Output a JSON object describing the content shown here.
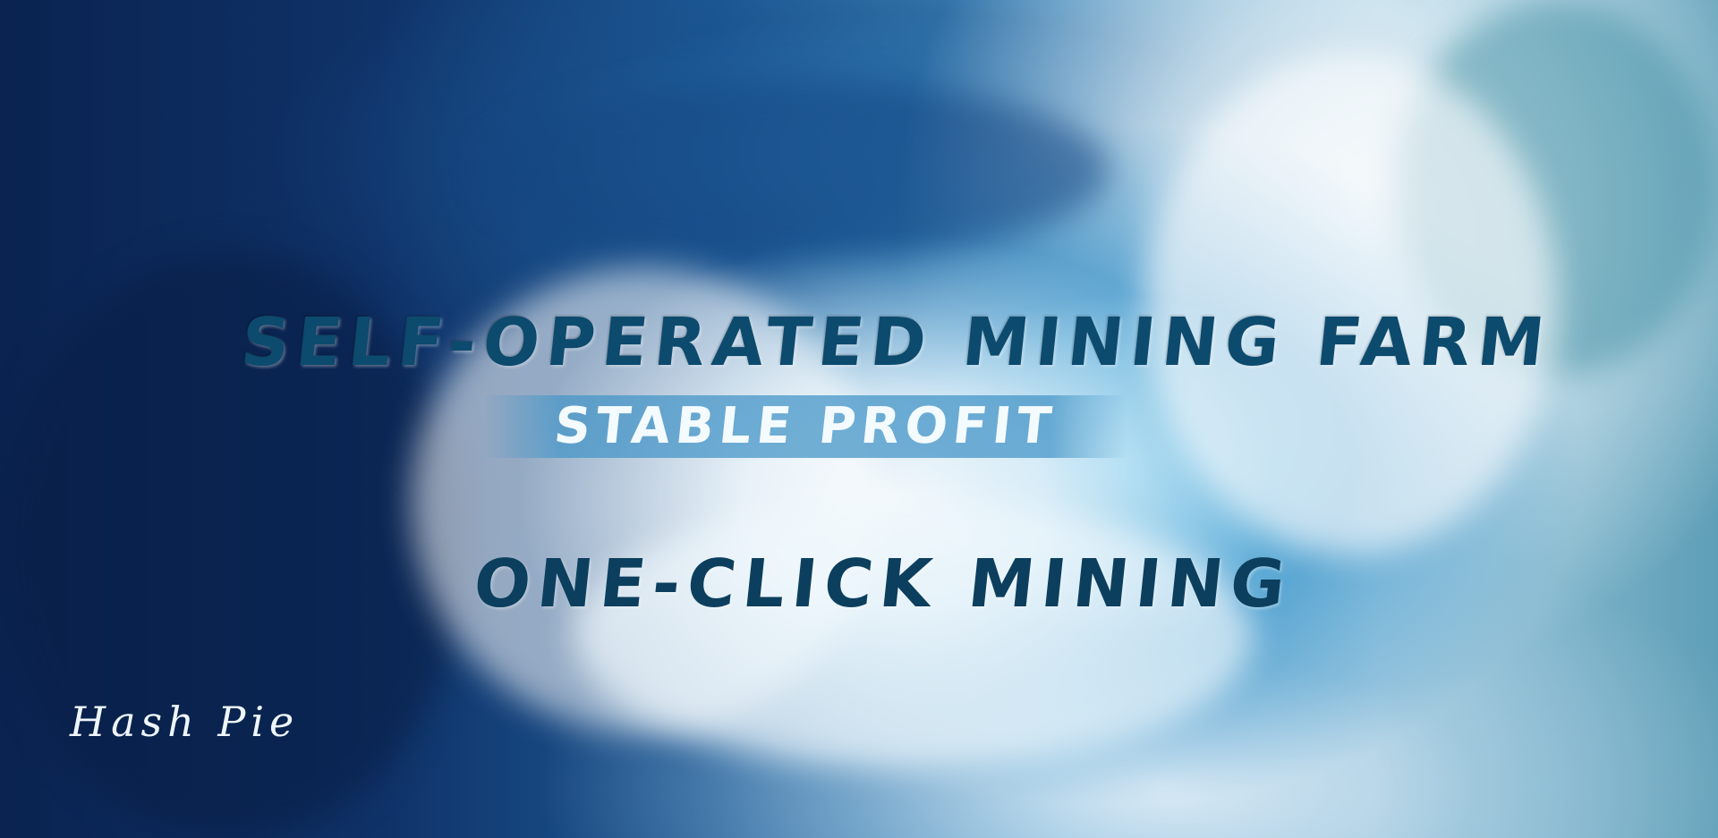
{
  "banner": {
    "headline": "SELF-OPERATED MINING FARM",
    "subheadline": "STABLE PROFIT",
    "tagline": "ONE-CLICK MINING",
    "logo_text": "Hash Pie"
  },
  "colors": {
    "headline_text": "#0c4a6e",
    "subheadline_text": "#f4fbff",
    "subheadline_band": "#4696c8",
    "tagline_text": "#0c3f5e",
    "logo_text": "#eef6fb",
    "deep_ocean": "#0a2350",
    "foam": "#ffffff"
  }
}
